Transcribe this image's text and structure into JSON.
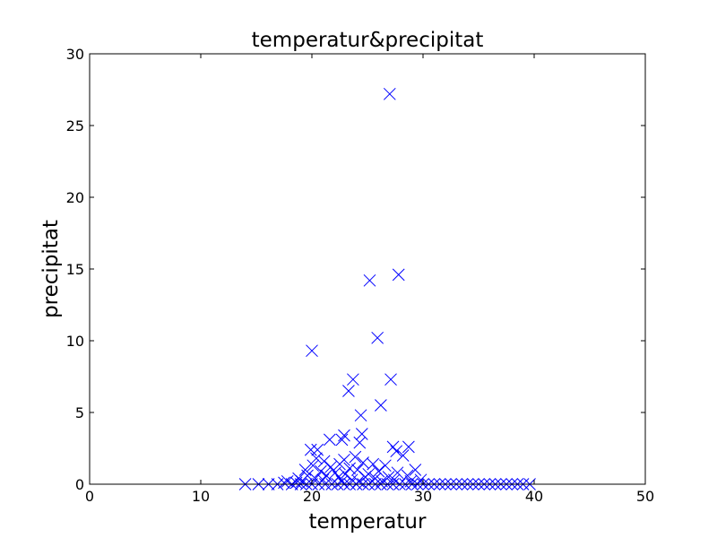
{
  "chart_data": {
    "type": "scatter",
    "title": "temperatur&precipitat",
    "xlabel": "temperatur",
    "ylabel": "precipitat",
    "xlim": [
      0,
      50
    ],
    "ylim": [
      0,
      30
    ],
    "xticks": [
      0,
      10,
      20,
      30,
      40,
      50
    ],
    "yticks": [
      0,
      5,
      10,
      15,
      20,
      25,
      30
    ],
    "grid": false,
    "marker": "x",
    "color": "#0000ff",
    "series": [
      {
        "points": [
          [
            27.0,
            27.2
          ],
          [
            27.8,
            14.6
          ],
          [
            25.2,
            14.2
          ],
          [
            25.9,
            10.2
          ],
          [
            20.0,
            9.3
          ],
          [
            27.1,
            7.3
          ],
          [
            23.7,
            7.3
          ],
          [
            23.3,
            6.5
          ],
          [
            26.2,
            5.5
          ],
          [
            24.4,
            4.8
          ],
          [
            24.5,
            3.5
          ],
          [
            22.9,
            3.4
          ],
          [
            22.7,
            3.1
          ],
          [
            21.6,
            3.1
          ],
          [
            24.3,
            2.9
          ],
          [
            28.7,
            2.6
          ],
          [
            27.3,
            2.6
          ],
          [
            27.6,
            2.3
          ],
          [
            19.9,
            2.4
          ],
          [
            20.5,
            2.4
          ],
          [
            28.2,
            2.0
          ],
          [
            23.9,
            1.9
          ],
          [
            20.4,
            1.8
          ],
          [
            22.9,
            1.7
          ],
          [
            21.1,
            1.6
          ],
          [
            24.6,
            1.5
          ],
          [
            25.5,
            1.4
          ],
          [
            22.5,
            1.4
          ],
          [
            26.6,
            1.3
          ],
          [
            20.1,
            1.3
          ],
          [
            21.7,
            1.2
          ],
          [
            23.4,
            1.1
          ],
          [
            19.4,
            1.0
          ],
          [
            29.3,
            1.0
          ],
          [
            24.1,
            1.0
          ],
          [
            26.0,
            0.9
          ],
          [
            20.8,
            0.9
          ],
          [
            27.7,
            0.8
          ],
          [
            22.1,
            0.8
          ],
          [
            25.1,
            0.7
          ],
          [
            23.0,
            0.7
          ],
          [
            21.3,
            0.6
          ],
          [
            19.6,
            0.6
          ],
          [
            28.6,
            0.6
          ],
          [
            26.9,
            0.5
          ],
          [
            24.8,
            0.5
          ],
          [
            22.4,
            0.5
          ],
          [
            20.3,
            0.4
          ],
          [
            18.8,
            0.4
          ],
          [
            25.7,
            0.4
          ],
          [
            29.8,
            0.3
          ],
          [
            23.6,
            0.3
          ],
          [
            21.0,
            0.3
          ],
          [
            27.4,
            0.3
          ],
          [
            19.1,
            0.2
          ],
          [
            26.3,
            0.2
          ],
          [
            22.7,
            0.2
          ],
          [
            24.2,
            0.2
          ],
          [
            28.9,
            0.2
          ],
          [
            17.8,
            0.2
          ],
          [
            14.0,
            0.0
          ],
          [
            15.2,
            0.0
          ],
          [
            16.1,
            0.0
          ],
          [
            16.9,
            0.0
          ],
          [
            17.5,
            0.1
          ],
          [
            18.2,
            0.0
          ],
          [
            18.6,
            0.1
          ],
          [
            19.0,
            0.0
          ],
          [
            19.5,
            0.0
          ],
          [
            20.0,
            0.0
          ],
          [
            20.6,
            0.0
          ],
          [
            21.2,
            0.0
          ],
          [
            21.8,
            0.0
          ],
          [
            22.3,
            0.0
          ],
          [
            22.9,
            0.0
          ],
          [
            23.4,
            0.0
          ],
          [
            24.0,
            0.0
          ],
          [
            24.6,
            0.0
          ],
          [
            25.1,
            0.0
          ],
          [
            25.7,
            0.0
          ],
          [
            26.2,
            0.0
          ],
          [
            26.8,
            0.0
          ],
          [
            27.3,
            0.0
          ],
          [
            27.9,
            0.0
          ],
          [
            28.4,
            0.0
          ],
          [
            29.0,
            0.0
          ],
          [
            29.5,
            0.0
          ],
          [
            30.0,
            0.0
          ],
          [
            30.5,
            0.0
          ],
          [
            31.0,
            0.0
          ],
          [
            31.5,
            0.0
          ],
          [
            32.0,
            0.0
          ],
          [
            32.5,
            0.0
          ],
          [
            33.0,
            0.0
          ],
          [
            33.5,
            0.0
          ],
          [
            34.0,
            0.0
          ],
          [
            34.5,
            0.0
          ],
          [
            35.0,
            0.0
          ],
          [
            35.5,
            0.0
          ],
          [
            36.0,
            0.0
          ],
          [
            36.5,
            0.0
          ],
          [
            37.0,
            0.0
          ],
          [
            37.5,
            0.0
          ],
          [
            38.0,
            0.0
          ],
          [
            38.5,
            0.0
          ],
          [
            39.0,
            0.0
          ],
          [
            39.6,
            0.0
          ]
        ]
      }
    ]
  }
}
